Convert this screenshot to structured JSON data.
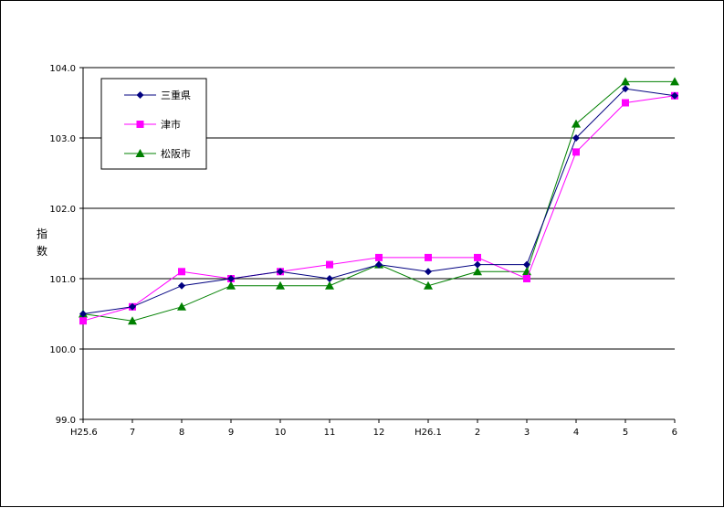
{
  "chart_data": {
    "type": "line",
    "title": "",
    "xlabel": "",
    "ylabel": "指数",
    "categories": [
      "H25.6",
      "7",
      "8",
      "9",
      "10",
      "11",
      "12",
      "H26.1",
      "2",
      "3",
      "4",
      "5",
      "6"
    ],
    "ylim": [
      99.0,
      104.0
    ],
    "yticks": [
      "99.0",
      "100.0",
      "101.0",
      "102.0",
      "103.0",
      "104.0"
    ],
    "grid": true,
    "legend_position": "top-left",
    "series": [
      {
        "name": "三重県",
        "color": "#000080",
        "marker": "diamond",
        "values": [
          100.5,
          100.6,
          100.9,
          101.0,
          101.1,
          101.0,
          101.2,
          101.1,
          101.2,
          101.2,
          103.0,
          103.7,
          103.6
        ]
      },
      {
        "name": "津市",
        "color": "#FF00FF",
        "marker": "square",
        "values": [
          100.4,
          100.6,
          101.1,
          101.0,
          101.1,
          101.2,
          101.3,
          101.3,
          101.3,
          101.0,
          102.8,
          103.5,
          103.6
        ]
      },
      {
        "name": "松阪市",
        "color": "#008000",
        "marker": "triangle",
        "values": [
          100.5,
          100.4,
          100.6,
          100.9,
          100.9,
          100.9,
          101.2,
          100.9,
          101.1,
          101.1,
          103.2,
          103.8,
          103.8
        ]
      }
    ]
  }
}
